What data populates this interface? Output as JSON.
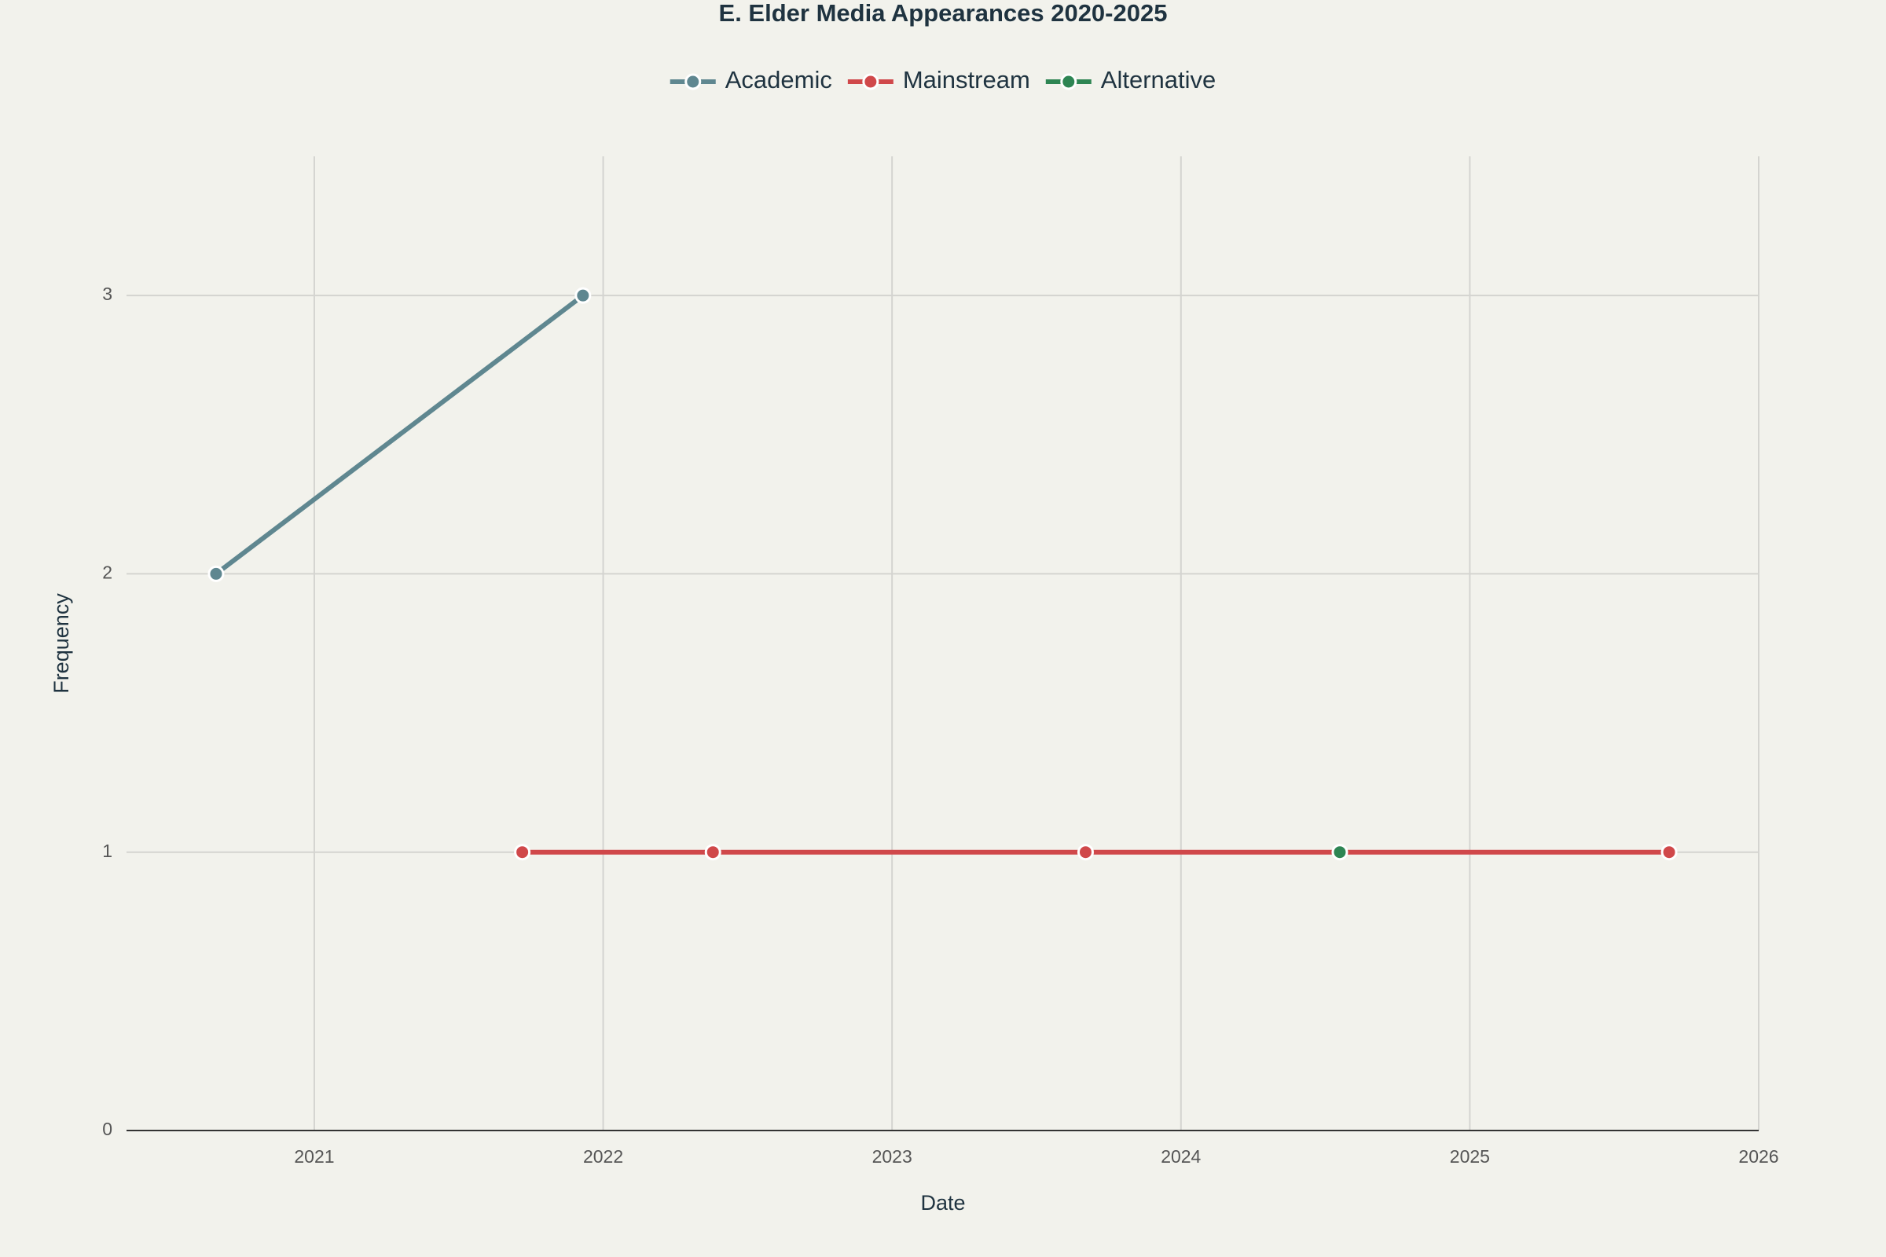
{
  "chart_data": {
    "type": "line",
    "title": "E. Elder Media Appearances 2020-2025",
    "x_label": "Date",
    "y_label": "Frequency",
    "series": [
      {
        "name": "Academic",
        "color": "#5f8790",
        "x": [
          2020.66,
          2021.93
        ],
        "values": [
          2,
          3
        ]
      },
      {
        "name": "Mainstream",
        "color": "#d0484a",
        "x": [
          2021.72,
          2022.38,
          2023.67,
          2025.69
        ],
        "values": [
          1,
          1,
          1,
          1
        ]
      },
      {
        "name": "Alternative",
        "color": "#2e8553",
        "x": [
          2024.55
        ],
        "values": [
          1
        ]
      }
    ],
    "xlim": [
      2020.35,
      2026
    ],
    "xticks": [
      2021,
      2022,
      2023,
      2024,
      2025,
      2026
    ],
    "ylim": [
      0,
      3.5
    ],
    "yticks": [
      0,
      1,
      2,
      3
    ],
    "grid": true,
    "legend_position": "top"
  }
}
